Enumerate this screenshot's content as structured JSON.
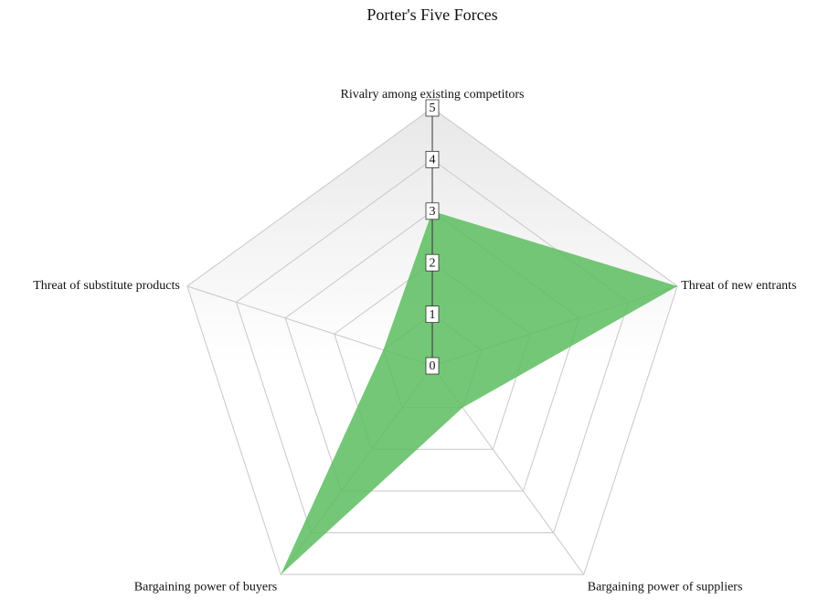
{
  "chart_data": {
    "type": "radar",
    "title": "Porter's Five Forces",
    "categories": [
      "Rivalry among existing competitors",
      "Threat of new entrants",
      "Bargaining power of suppliers",
      "Bargaining power of buyers",
      "Threat of substitute products"
    ],
    "values": [
      3,
      5,
      1,
      5,
      1
    ],
    "color": "#5cbd5f",
    "rlim": [
      0,
      5
    ],
    "rticks": [
      0,
      1,
      2,
      3,
      4,
      5
    ],
    "grid": true
  }
}
